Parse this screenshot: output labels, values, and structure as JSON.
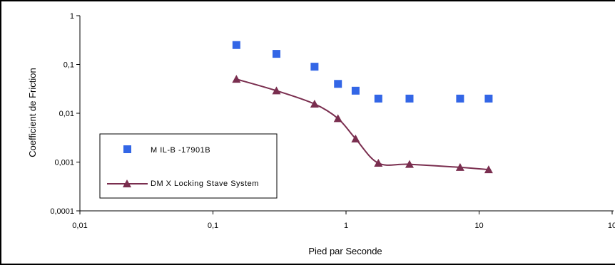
{
  "chart_data": {
    "type": "scatter",
    "xlabel": "Pied par Seconde",
    "ylabel": "Coefficient de Friction",
    "xscale": "log",
    "yscale": "log",
    "xlim": [
      0.01,
      10
    ],
    "ylim": [
      0.0001,
      1
    ],
    "xticks": [
      "0,01",
      "0,1",
      "1",
      "10",
      "10"
    ],
    "yticks": [
      "1",
      "0,1",
      "0,01",
      "0,001",
      "0,0001"
    ],
    "grid": false,
    "legend_position": "bottom-left",
    "series": [
      {
        "name": "M IL-B -17901B",
        "marker": "square",
        "line": false,
        "color": "#3366e6",
        "x": [
          0.15,
          0.3,
          0.58,
          0.87,
          1.18,
          1.75,
          3.0,
          7.2,
          11.8
        ],
        "y": [
          0.25,
          0.165,
          0.09,
          0.04,
          0.029,
          0.02,
          0.02,
          0.02,
          0.02
        ]
      },
      {
        "name": "DM X Locking Stave System",
        "marker": "triangle",
        "line": true,
        "color": "#7a2e4f",
        "x": [
          0.15,
          0.3,
          0.58,
          0.87,
          1.18,
          1.75,
          3.0,
          7.2,
          11.8
        ],
        "y": [
          0.05,
          0.029,
          0.0155,
          0.0078,
          0.003,
          0.00095,
          0.0009,
          0.00078,
          0.0007
        ]
      }
    ]
  }
}
